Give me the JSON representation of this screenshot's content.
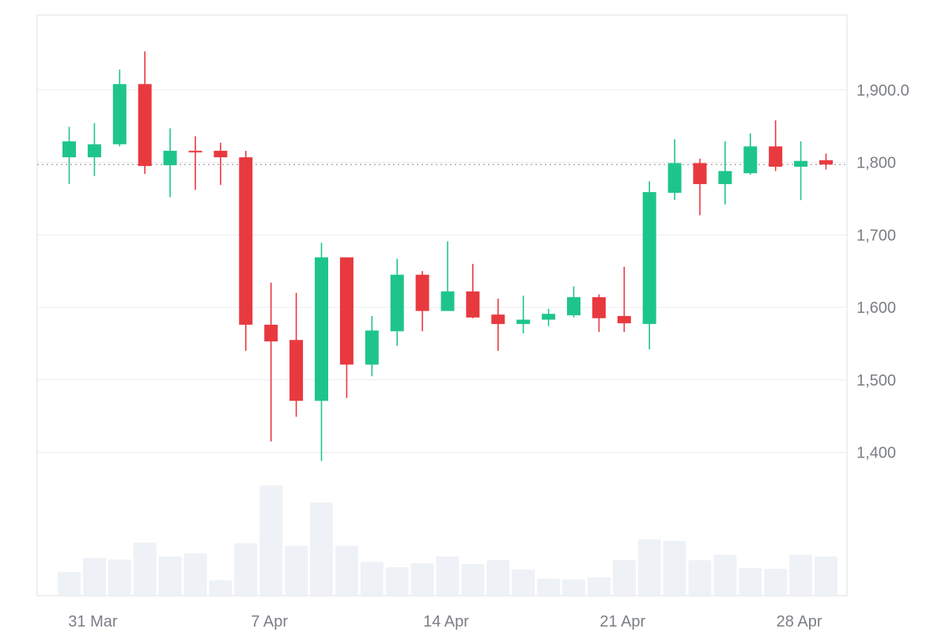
{
  "chart_data": {
    "type": "candlestick",
    "title": "",
    "xlabel": "",
    "ylabel": "",
    "ylim": [
      1300,
      2000
    ],
    "y_ticks": [
      "1,400",
      "1,500",
      "1,600",
      "1,700",
      "1,800",
      "1,900.0"
    ],
    "x_ticks": [
      "31 Mar",
      "7 Apr",
      "14 Apr",
      "21 Apr",
      "28 Apr"
    ],
    "grid": true,
    "reference_line": 1797,
    "colors": {
      "up": "#1ec58a",
      "down": "#e8393f",
      "volume": "#eef1f5",
      "grid": "#ececef",
      "axis_text": "#7b7e85"
    },
    "series": [
      {
        "date": "30 Mar",
        "open": 1807,
        "high": 1849,
        "low": 1770,
        "close": 1829
      },
      {
        "date": "31 Mar",
        "open": 1807,
        "high": 1854,
        "low": 1781,
        "close": 1825
      },
      {
        "date": "1 Apr",
        "open": 1825,
        "high": 1928,
        "low": 1822,
        "close": 1908
      },
      {
        "date": "2 Apr",
        "open": 1908,
        "high": 1953,
        "low": 1784,
        "close": 1795
      },
      {
        "date": "3 Apr",
        "open": 1796,
        "high": 1847,
        "low": 1752,
        "close": 1816
      },
      {
        "date": "4 Apr",
        "open": 1816,
        "high": 1836,
        "low": 1762,
        "close": 1814
      },
      {
        "date": "5 Apr",
        "open": 1816,
        "high": 1827,
        "low": 1769,
        "close": 1807
      },
      {
        "date": "6 Apr",
        "open": 1807,
        "high": 1816,
        "low": 1540,
        "close": 1576
      },
      {
        "date": "7 Apr",
        "open": 1576,
        "high": 1634,
        "low": 1415,
        "close": 1553
      },
      {
        "date": "8 Apr",
        "open": 1555,
        "high": 1620,
        "low": 1449,
        "close": 1471
      },
      {
        "date": "9 Apr",
        "open": 1471,
        "high": 1689,
        "low": 1388,
        "close": 1669
      },
      {
        "date": "10 Apr",
        "open": 1669,
        "high": 1669,
        "low": 1475,
        "close": 1521
      },
      {
        "date": "11 Apr",
        "open": 1521,
        "high": 1588,
        "low": 1505,
        "close": 1568
      },
      {
        "date": "12 Apr",
        "open": 1567,
        "high": 1667,
        "low": 1547,
        "close": 1645
      },
      {
        "date": "13 Apr",
        "open": 1645,
        "high": 1650,
        "low": 1567,
        "close": 1595
      },
      {
        "date": "14 Apr",
        "open": 1595,
        "high": 1691,
        "low": 1595,
        "close": 1622
      },
      {
        "date": "15 Apr",
        "open": 1622,
        "high": 1660,
        "low": 1585,
        "close": 1586
      },
      {
        "date": "16 Apr",
        "open": 1590,
        "high": 1612,
        "low": 1540,
        "close": 1577
      },
      {
        "date": "17 Apr",
        "open": 1577,
        "high": 1616,
        "low": 1564,
        "close": 1583
      },
      {
        "date": "18 Apr",
        "open": 1583,
        "high": 1598,
        "low": 1574,
        "close": 1591
      },
      {
        "date": "19 Apr",
        "open": 1589,
        "high": 1629,
        "low": 1586,
        "close": 1614
      },
      {
        "date": "20 Apr",
        "open": 1614,
        "high": 1618,
        "low": 1566,
        "close": 1585
      },
      {
        "date": "21 Apr",
        "open": 1588,
        "high": 1656,
        "low": 1566,
        "close": 1578
      },
      {
        "date": "22 Apr",
        "open": 1577,
        "high": 1774,
        "low": 1542,
        "close": 1759
      },
      {
        "date": "23 Apr",
        "open": 1758,
        "high": 1832,
        "low": 1748,
        "close": 1799
      },
      {
        "date": "24 Apr",
        "open": 1799,
        "high": 1805,
        "low": 1727,
        "close": 1770
      },
      {
        "date": "25 Apr",
        "open": 1770,
        "high": 1829,
        "low": 1742,
        "close": 1788
      },
      {
        "date": "26 Apr",
        "open": 1785,
        "high": 1840,
        "low": 1783,
        "close": 1822
      },
      {
        "date": "27 Apr",
        "open": 1822,
        "high": 1858,
        "low": 1788,
        "close": 1794
      },
      {
        "date": "28 Apr",
        "open": 1794,
        "high": 1829,
        "low": 1748,
        "close": 1802
      },
      {
        "date": "29 Apr",
        "open": 1803,
        "high": 1812,
        "low": 1790,
        "close": 1797
      }
    ],
    "volume": [
      30,
      48,
      46,
      68,
      50,
      54,
      19,
      67,
      142,
      64,
      120,
      64,
      43,
      36,
      41,
      50,
      40,
      45,
      33,
      21,
      20,
      23,
      45,
      72,
      70,
      45,
      52,
      35,
      34,
      52,
      50
    ]
  }
}
